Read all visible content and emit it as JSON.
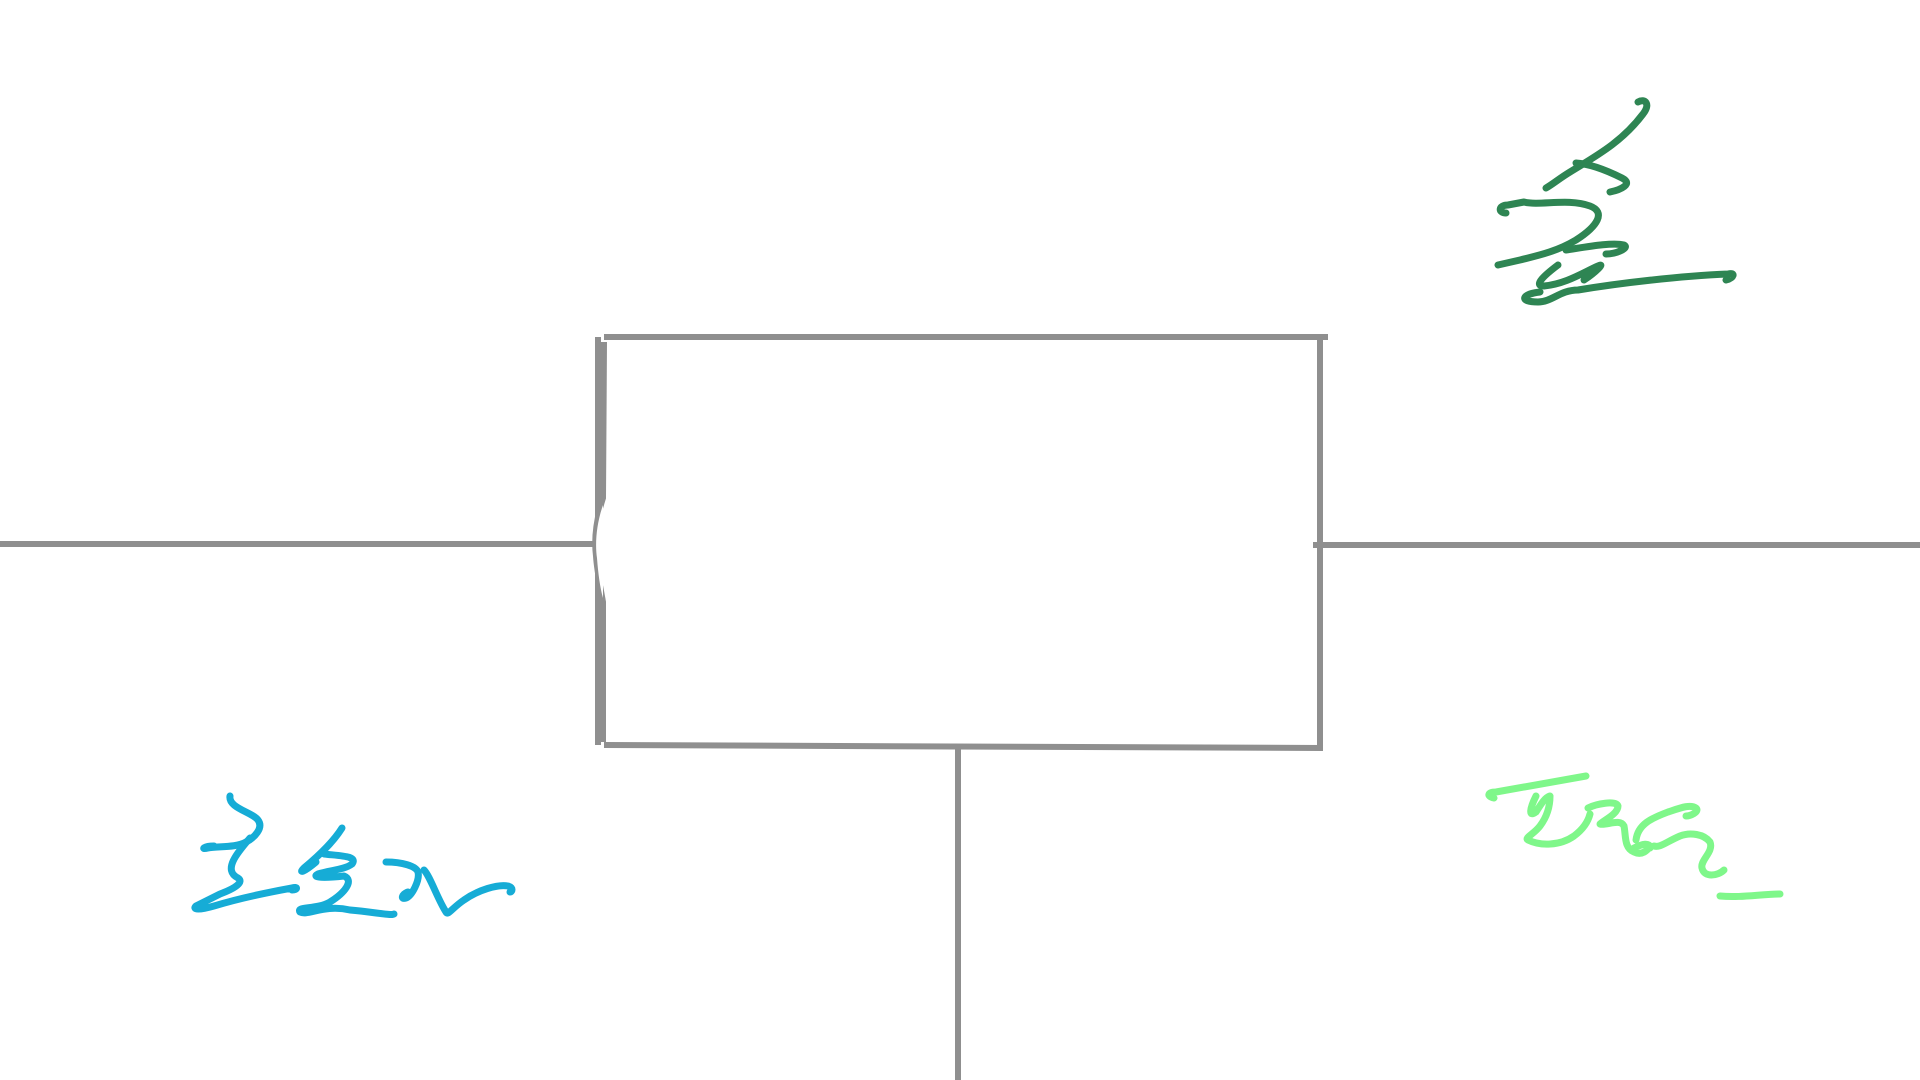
{
  "diagram": {
    "description_free": true,
    "nodes": [
      {
        "id": "block",
        "shape": "rectangle"
      }
    ],
    "connectors": [
      {
        "id": "left-wire",
        "to": "block"
      },
      {
        "id": "right-wire",
        "from": "block"
      },
      {
        "id": "bottom-wire",
        "from": "block"
      }
    ],
    "handwritten_labels": [
      {
        "id": "label-top-right",
        "color": "#2e8553",
        "position": "top-right"
      },
      {
        "id": "label-bottom-left",
        "color": "#16acd6",
        "position": "bottom-left"
      },
      {
        "id": "label-bottom-right",
        "color": "#7ff78a",
        "position": "bottom-right"
      }
    ]
  },
  "colors": {
    "background": "#ffffff",
    "lines": "#8f8f8f"
  }
}
